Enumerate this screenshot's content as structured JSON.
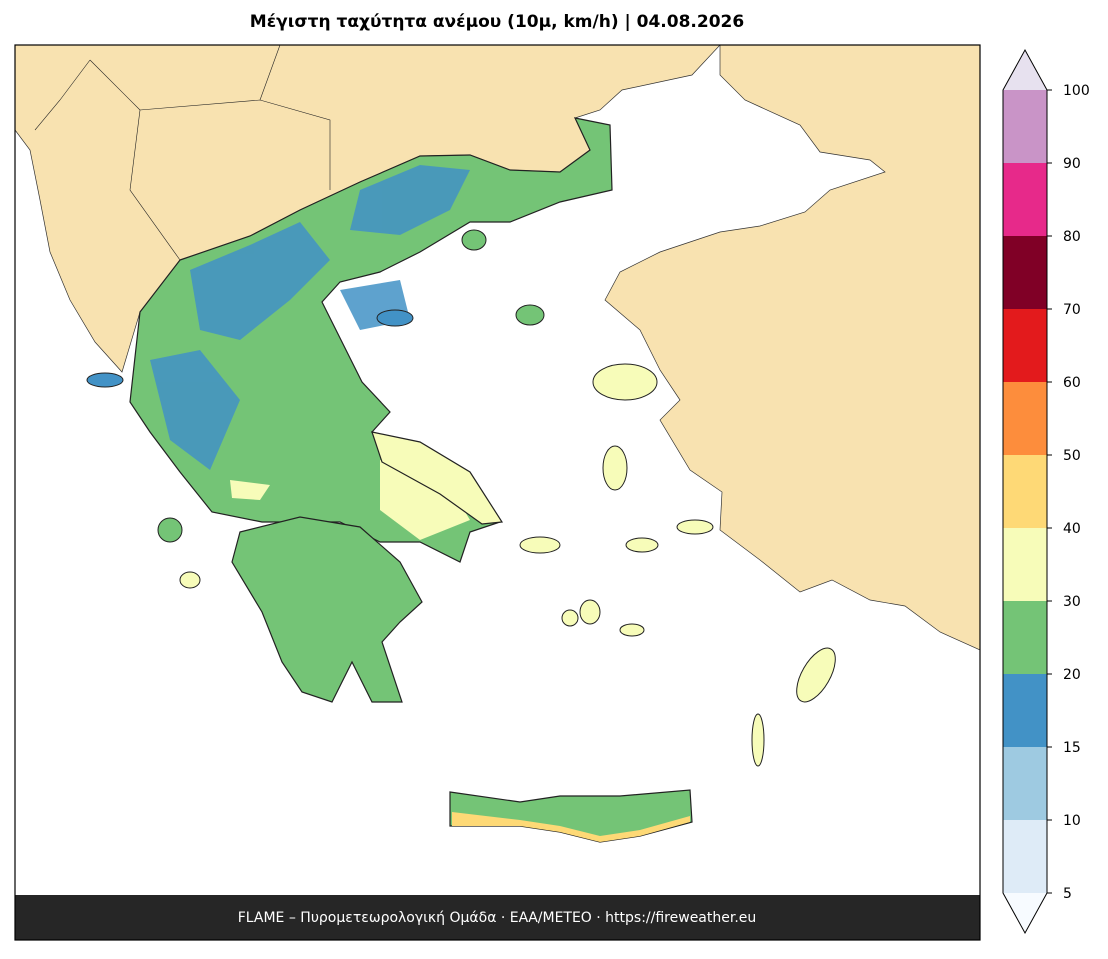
{
  "title": "Μέγιστη ταχύτητα ανέμου (10μ, km/h)  |  04.08.2026",
  "footer": "FLAME – Πυρομετεωρολογική Ομάδα · ΕΑΑ/METEO · https://fireweather.eu",
  "colorbar": {
    "bounds": [
      5,
      10,
      15,
      20,
      30,
      40,
      50,
      60,
      70,
      80,
      90,
      100
    ],
    "colors": [
      "#deebf7",
      "#9ecae1",
      "#4292c6",
      "#74c476",
      "#f7fcb9",
      "#fed976",
      "#fd8d3c",
      "#e31a1c",
      "#800026",
      "#e7298a",
      "#c994c7"
    ],
    "extend_colors": [
      "#f7fbff",
      "#e7e1ef"
    ]
  }
}
